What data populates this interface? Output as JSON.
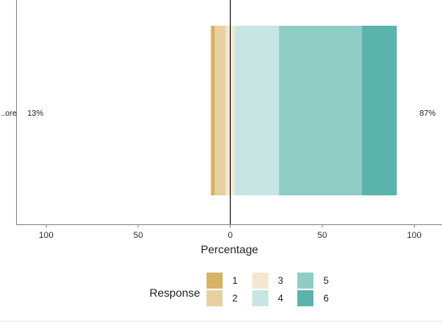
{
  "chart_data": {
    "type": "bar",
    "orientation": "horizontal-diverging-stacked",
    "categories": [
      "...ore"
    ],
    "xlabel": "Percentage",
    "xlim": [
      -115,
      115
    ],
    "x_ticks": [
      -100,
      -50,
      0,
      50,
      100
    ],
    "x_tick_labels": [
      "100",
      "50",
      "0",
      "50",
      "100"
    ],
    "left_percent_label": "13%",
    "right_percent_label": "87%",
    "series": [
      {
        "name": "1",
        "color": "#D8B365",
        "values": [
          2
        ]
      },
      {
        "name": "2",
        "color": "#E8D0A0",
        "values": [
          6
        ]
      },
      {
        "name": "3",
        "color": "#F5E6CF",
        "values": [
          5
        ]
      },
      {
        "name": "4",
        "color": "#C7E5E4",
        "values": [
          24
        ]
      },
      {
        "name": "5",
        "color": "#8FCCC5",
        "values": [
          45
        ]
      },
      {
        "name": "6",
        "color": "#5AB4AC",
        "values": [
          19
        ]
      }
    ],
    "legend": {
      "title": "Response",
      "position": "bottom"
    }
  }
}
